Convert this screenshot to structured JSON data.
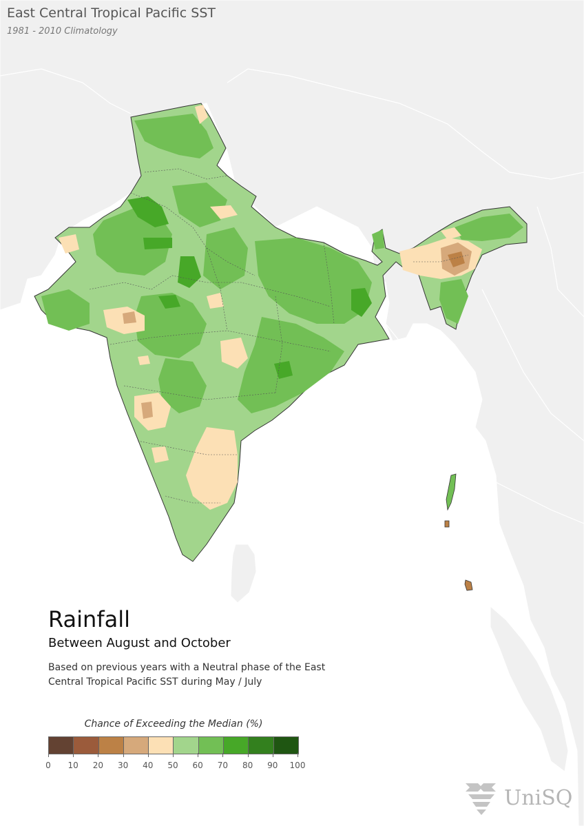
{
  "header": {
    "title": "East Central Tropical Pacific SST",
    "subtitle": "1981 - 2010 Climatology"
  },
  "panel": {
    "title": "Rainfall",
    "period": "Between August and October",
    "description": "Based on previous years with a Neutral phase of the East Central Tropical Pacific SST during May / July"
  },
  "legend": {
    "title": "Chance of Exceeding the Median (%)",
    "bins": [
      {
        "from": 0,
        "to": 10,
        "color": "#634232"
      },
      {
        "from": 10,
        "to": 20,
        "color": "#9b5b3b"
      },
      {
        "from": 20,
        "to": 30,
        "color": "#bc8146"
      },
      {
        "from": 30,
        "to": 40,
        "color": "#d6a97b"
      },
      {
        "from": 40,
        "to": 50,
        "color": "#fce0b5"
      },
      {
        "from": 50,
        "to": 60,
        "color": "#a2d58c"
      },
      {
        "from": 60,
        "to": 70,
        "color": "#72bf55"
      },
      {
        "from": 70,
        "to": 80,
        "color": "#47a828"
      },
      {
        "from": 80,
        "to": 90,
        "color": "#33801e"
      },
      {
        "from": 90,
        "to": 100,
        "color": "#1f5612"
      }
    ],
    "ticks": [
      "0",
      "10",
      "20",
      "30",
      "40",
      "50",
      "60",
      "70",
      "80",
      "90",
      "100"
    ]
  },
  "map": {
    "land_color": "#f0f0f0",
    "sea_color": "#ffffff",
    "base_color": "#a2d58c"
  },
  "logo": {
    "text": "UniSQ",
    "icon": "unisq-crest-icon"
  }
}
